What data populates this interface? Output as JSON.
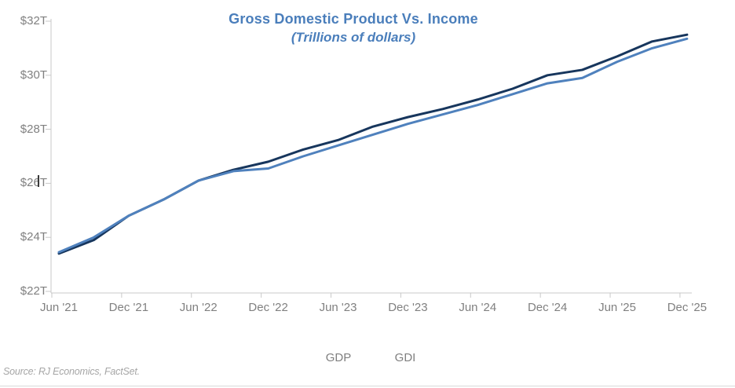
{
  "header": {
    "title": "Gross Domestic Product Vs. Income",
    "subtitle": "(Trillions of dollars)"
  },
  "source_note": "Source: RJ Economics, FactSet.",
  "colors": {
    "title_text": "#4A7EBB",
    "gdp_line": "#17365D",
    "gdi_line": "#4F81BD",
    "axis_text": "#808080",
    "legend_text": "#7F7F7F",
    "axis_line": "#C9C9C9",
    "source_text": "#A6A6A6"
  },
  "chart_data": {
    "type": "line",
    "title": "Gross Domestic Product Vs. Income",
    "subtitle": "(Trillions of dollars)",
    "x": [
      "Jun '21",
      "Sep '21",
      "Dec '21",
      "Mar '22",
      "Jun '22",
      "Sep '22",
      "Dec '22",
      "Mar '23",
      "Jun '23",
      "Sep '23",
      "Dec '23",
      "Mar '24",
      "Jun '24",
      "Sep '24",
      "Dec '24",
      "Mar '25",
      "Jun '25",
      "Sep '25",
      "Dec '25"
    ],
    "x_tick_labels": [
      "Jun '21",
      "Dec '21",
      "Jun '22",
      "Dec '22",
      "Jun '23",
      "Dec '23",
      "Jun '24",
      "Dec '24",
      "Jun '25",
      "Dec '25"
    ],
    "y_tick_labels": [
      "$22T",
      "$24T",
      "$26T",
      "$28T",
      "$30T",
      "$32T"
    ],
    "ylim": [
      22,
      32
    ],
    "y_tick_step": 2,
    "ylabel": "",
    "xlabel": "",
    "grid": false,
    "legend_position": "bottom",
    "series": [
      {
        "name": "GDP",
        "color": "#17365D",
        "values": [
          23.4,
          23.9,
          24.8,
          25.4,
          26.1,
          26.5,
          26.8,
          27.25,
          27.6,
          28.1,
          28.45,
          28.75,
          29.1,
          29.5,
          30.0,
          30.2,
          30.7,
          31.25,
          31.5
        ]
      },
      {
        "name": "GDI",
        "color": "#4F81BD",
        "values": [
          23.45,
          24.0,
          24.8,
          25.4,
          26.1,
          26.45,
          26.55,
          27.0,
          27.4,
          27.8,
          28.2,
          28.55,
          28.9,
          29.3,
          29.7,
          29.9,
          30.5,
          31.0,
          31.35
        ]
      }
    ]
  }
}
